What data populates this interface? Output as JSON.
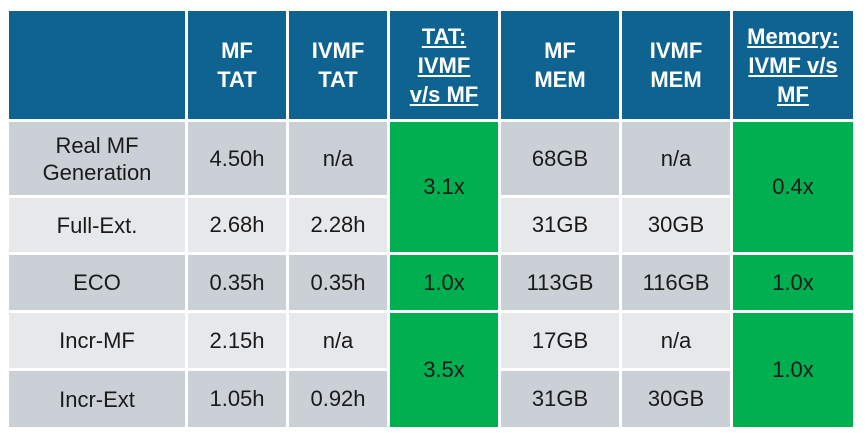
{
  "table": {
    "headers": [
      "",
      "MF\nTAT",
      "IVMF\nTAT",
      "TAT:\nIVMF\nv/s MF",
      "MF\nMEM",
      "IVMF\nMEM",
      "Memory:\nIVMF v/s\nMF"
    ],
    "rows": [
      {
        "label": "Real MF\nGeneration",
        "mf_tat": "4.50h",
        "ivmf_tat": "n/a",
        "mf_mem": "68GB",
        "ivmf_mem": "n/a"
      },
      {
        "label": "Full-Ext.",
        "mf_tat": "2.68h",
        "ivmf_tat": "2.28h",
        "mf_mem": "31GB",
        "ivmf_mem": "30GB"
      },
      {
        "label": "ECO",
        "mf_tat": "0.35h",
        "ivmf_tat": "0.35h",
        "mf_mem": "113GB",
        "ivmf_mem": "116GB"
      },
      {
        "label": "Incr-MF",
        "mf_tat": "2.15h",
        "ivmf_tat": "n/a",
        "mf_mem": "17GB",
        "ivmf_mem": "n/a"
      },
      {
        "label": "Incr-Ext",
        "mf_tat": "1.05h",
        "ivmf_tat": "0.92h",
        "mf_mem": "31GB",
        "ivmf_mem": "30GB"
      }
    ],
    "tat_ratio": [
      "3.1x",
      "1.0x",
      "3.5x"
    ],
    "mem_ratio": [
      "0.4x",
      "1.0x",
      "1.0x"
    ]
  },
  "colors": {
    "header_bg": "#0e6390",
    "header_text": "#ffffff",
    "row_dark": "#cbd0d6",
    "row_light": "#e6e8ea",
    "ratio_green": "#00b050"
  }
}
